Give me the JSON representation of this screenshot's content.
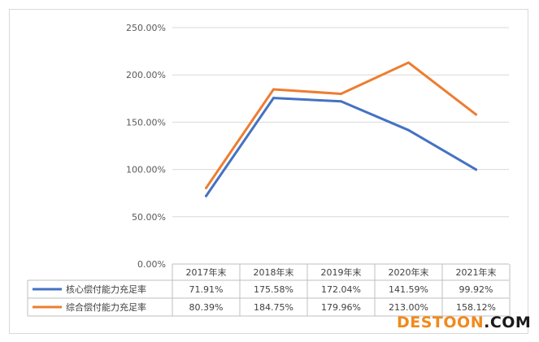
{
  "chart_data": {
    "type": "line",
    "categories": [
      "2017年末",
      "2018年末",
      "2019年末",
      "2020年末",
      "2021年末"
    ],
    "ylim": [
      0,
      250
    ],
    "yticks": [
      "0.00%",
      "50.00%",
      "100.00%",
      "150.00%",
      "200.00%",
      "250.00%"
    ],
    "grid": true,
    "legend": "data-table",
    "series": [
      {
        "name": "核心偿付能力充足率",
        "values": [
          71.91,
          175.58,
          172.04,
          141.59,
          99.92
        ],
        "labels": [
          "71.91%",
          "175.58%",
          "172.04%",
          "141.59%",
          "99.92%"
        ],
        "color": "#4472c4"
      },
      {
        "name": "综合偿付能力充足率",
        "values": [
          80.39,
          184.75,
          179.96,
          213.0,
          158.12
        ],
        "labels": [
          "80.39%",
          "184.75%",
          "179.96%",
          "213.00%",
          "158.12%"
        ],
        "color": "#ed7d31"
      }
    ]
  },
  "watermark": {
    "part1": "DESTOON",
    "part2": ".COM"
  }
}
